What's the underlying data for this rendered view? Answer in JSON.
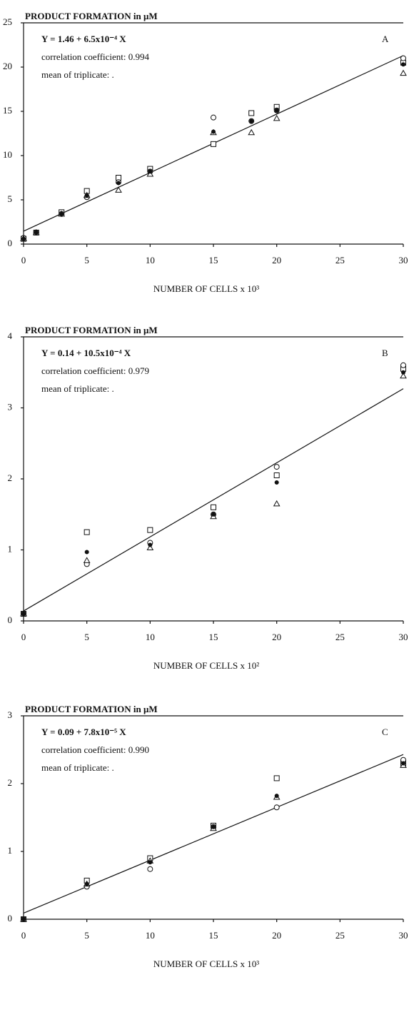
{
  "chart_data": [
    {
      "type": "scatter",
      "title": "PRODUCT FORMATION in μM",
      "x_label": "NUMBER OF CELLS x 10³",
      "panel": "A",
      "annotations": [
        "Y = 1.46 + 6.5x10⁻⁴ X",
        "correlation coefficient: 0.994",
        "mean of triplicate: ."
      ],
      "xlim": [
        0,
        30
      ],
      "xticks": [
        0,
        5,
        10,
        15,
        20,
        25,
        30
      ],
      "ylim": [
        0,
        25
      ],
      "yticks": [
        0,
        5,
        10,
        15,
        20,
        25
      ],
      "x": [
        0,
        1,
        3,
        5,
        7.5,
        10,
        15,
        18,
        20,
        30
      ],
      "series": [
        {
          "marker": "square",
          "color": "#111",
          "values": [
            0.6,
            1.3,
            3.6,
            6.0,
            7.5,
            8.5,
            11.3,
            14.8,
            15.5,
            20.5
          ]
        },
        {
          "marker": "circle",
          "color": "#111",
          "values": [
            0.7,
            1.3,
            3.4,
            5.3,
            7.0,
            8.2,
            14.3,
            13.9,
            15.1,
            21.0
          ]
        },
        {
          "marker": "triangle",
          "color": "#111",
          "values": [
            0.6,
            1.3,
            3.4,
            5.5,
            6.1,
            7.9,
            12.6,
            12.6,
            14.2,
            19.3
          ]
        },
        {
          "marker": "dot",
          "color": "#111",
          "values": [
            0.6,
            1.3,
            3.4,
            5.5,
            6.9,
            8.2,
            12.7,
            13.9,
            15.1,
            20.3
          ]
        }
      ],
      "fit": {
        "x": [
          0,
          30
        ],
        "values": [
          1.46,
          21.3
        ]
      }
    },
    {
      "type": "scatter",
      "title": "PRODUCT FORMATION in μM",
      "x_label": "NUMBER OF CELLS x 10²",
      "panel": "B",
      "annotations": [
        "Y = 0.14 + 10.5x10⁻⁴ X",
        "correlation coefficient: 0.979",
        "mean of triplicate: ."
      ],
      "xlim": [
        0,
        30
      ],
      "xticks": [
        0,
        5,
        10,
        15,
        20,
        25,
        30
      ],
      "ylim": [
        0,
        4
      ],
      "yticks": [
        0,
        1,
        2,
        3,
        4
      ],
      "x": [
        0,
        5,
        10,
        15,
        20,
        30
      ],
      "series": [
        {
          "marker": "square",
          "color": "#111",
          "values": [
            0.1,
            1.25,
            1.28,
            1.6,
            2.05,
            3.55
          ]
        },
        {
          "marker": "circle",
          "color": "#111",
          "values": [
            0.1,
            0.8,
            1.1,
            1.5,
            2.17,
            3.6
          ]
        },
        {
          "marker": "triangle",
          "color": "#111",
          "values": [
            0.1,
            0.85,
            1.03,
            1.47,
            1.65,
            3.45
          ]
        },
        {
          "marker": "dot",
          "color": "#111",
          "values": [
            0.1,
            0.97,
            1.07,
            1.5,
            1.95,
            3.5
          ]
        }
      ],
      "fit": {
        "x": [
          0,
          30
        ],
        "values": [
          0.14,
          3.27
        ]
      }
    },
    {
      "type": "scatter",
      "title": "PRODUCT FORMATION in μM",
      "x_label": "NUMBER OF CELLS x 10³",
      "panel": "C",
      "annotations": [
        "Y = 0.09 + 7.8x10⁻⁵ X",
        "correlation coefficient: 0.990",
        "mean of triplicate: ."
      ],
      "xlim": [
        0,
        30
      ],
      "xticks": [
        0,
        5,
        10,
        15,
        20,
        25,
        30
      ],
      "ylim": [
        0,
        3
      ],
      "yticks": [
        0,
        1,
        2,
        3
      ],
      "x": [
        0,
        5,
        10,
        15,
        20,
        30
      ],
      "series": [
        {
          "marker": "square",
          "color": "#111",
          "values": [
            0,
            0.57,
            0.9,
            1.38,
            2.08,
            2.3
          ]
        },
        {
          "marker": "circle",
          "color": "#111",
          "values": [
            0,
            0.48,
            0.74,
            1.36,
            1.65,
            2.35
          ]
        },
        {
          "marker": "triangle",
          "color": "#111",
          "values": [
            0,
            0.52,
            0.86,
            1.34,
            1.8,
            2.27
          ]
        },
        {
          "marker": "dot",
          "color": "#111",
          "values": [
            0,
            0.52,
            0.84,
            1.36,
            1.82,
            2.3
          ]
        }
      ],
      "fit": {
        "x": [
          0,
          30
        ],
        "values": [
          0.09,
          2.43
        ]
      }
    }
  ]
}
